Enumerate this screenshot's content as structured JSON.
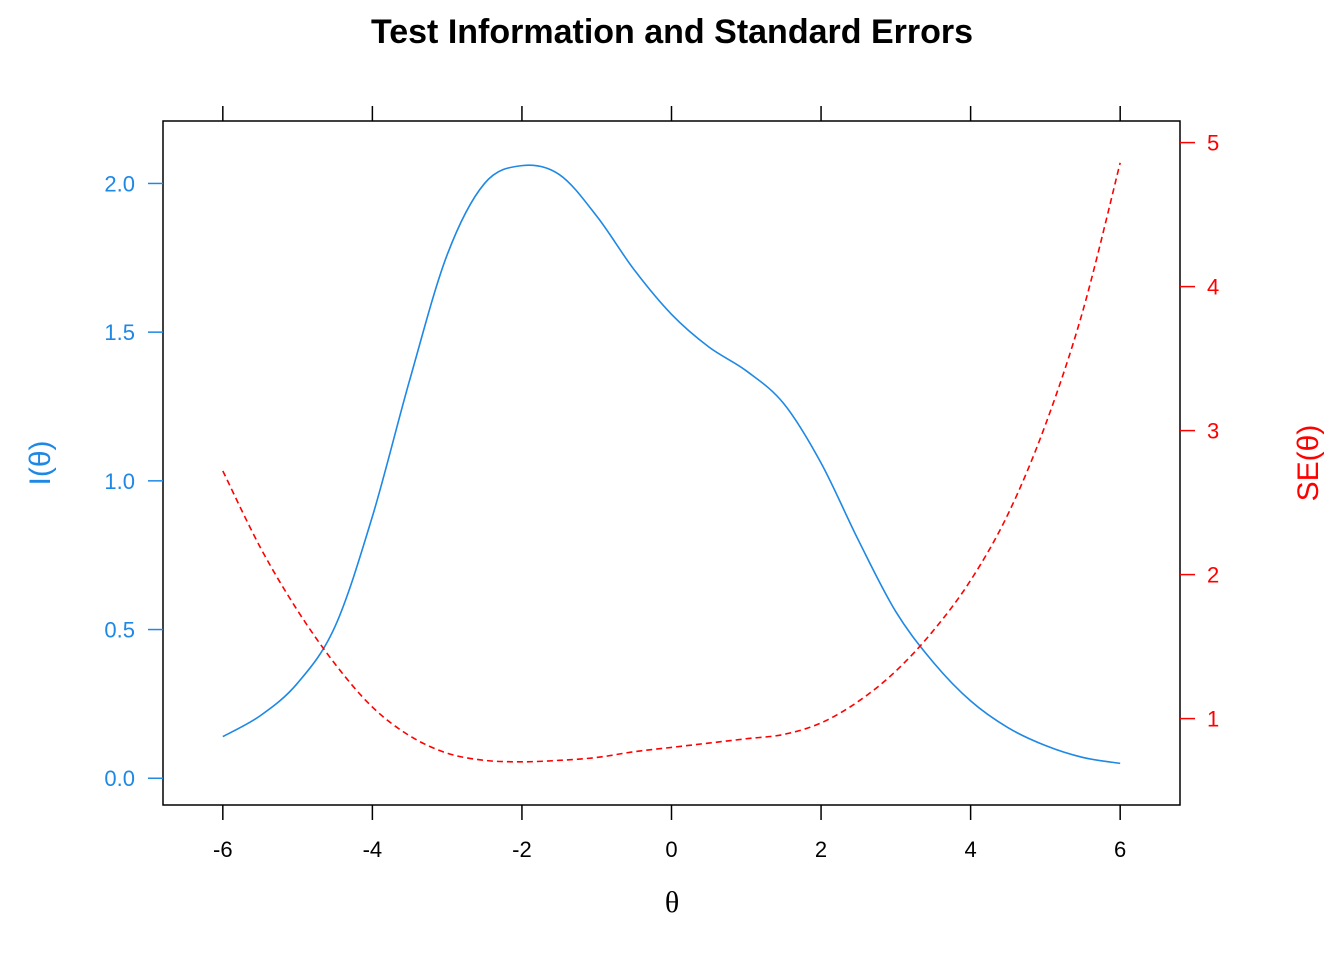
{
  "chart_data": {
    "type": "line",
    "title": "Test Information and Standard Errors",
    "xlabel": "θ",
    "ylabel_left": "I(θ)",
    "ylabel_right": "SE(θ)",
    "colors": {
      "information": "#1E88E5",
      "se": "#FF0000",
      "axis": "#000000"
    },
    "xlim": [
      -6.8,
      6.8
    ],
    "ylim_left": [
      -0.09,
      2.21
    ],
    "ylim_right": [
      0.4,
      5.15
    ],
    "x_ticks": [
      -6,
      -4,
      -2,
      0,
      2,
      4,
      6
    ],
    "x_tick_labels": [
      "-6",
      "-4",
      "-2",
      "0",
      "2",
      "4",
      "6"
    ],
    "y_left_ticks": [
      0.0,
      0.5,
      1.0,
      1.5,
      2.0
    ],
    "y_left_tick_labels": [
      "0.0",
      "0.5",
      "1.0",
      "1.5",
      "2.0"
    ],
    "y_right_ticks": [
      1,
      2,
      3,
      4,
      5
    ],
    "y_right_tick_labels": [
      "1",
      "2",
      "3",
      "4",
      "5"
    ],
    "grid": false,
    "series": [
      {
        "axis": "left",
        "style": "solid",
        "x": [
          -6,
          -5.5,
          -5,
          -4.5,
          -4,
          -3.5,
          -3,
          -2.5,
          -2,
          -1.5,
          -1,
          -0.5,
          0,
          0.5,
          1,
          1.5,
          2,
          2.5,
          3,
          3.5,
          4,
          4.5,
          5,
          5.5,
          6
        ],
        "y": [
          0.14,
          0.21,
          0.32,
          0.51,
          0.88,
          1.34,
          1.76,
          2.0,
          2.06,
          2.03,
          1.89,
          1.71,
          1.56,
          1.45,
          1.37,
          1.26,
          1.06,
          0.8,
          0.56,
          0.39,
          0.26,
          0.17,
          0.11,
          0.07,
          0.05
        ]
      },
      {
        "axis": "right",
        "style": "dashed",
        "x": [
          -6,
          -5.5,
          -5,
          -4.5,
          -4,
          -3.5,
          -3,
          -2.5,
          -2,
          -1.5,
          -1,
          -0.5,
          0,
          0.5,
          1,
          1.5,
          2,
          2.5,
          3,
          3.5,
          4,
          4.5,
          5,
          5.5,
          6
        ],
        "y": [
          2.72,
          2.19,
          1.75,
          1.38,
          1.08,
          0.88,
          0.76,
          0.71,
          0.7,
          0.71,
          0.73,
          0.77,
          0.8,
          0.83,
          0.86,
          0.89,
          0.97,
          1.12,
          1.33,
          1.61,
          1.96,
          2.42,
          3.04,
          3.83,
          4.86
        ]
      }
    ]
  }
}
